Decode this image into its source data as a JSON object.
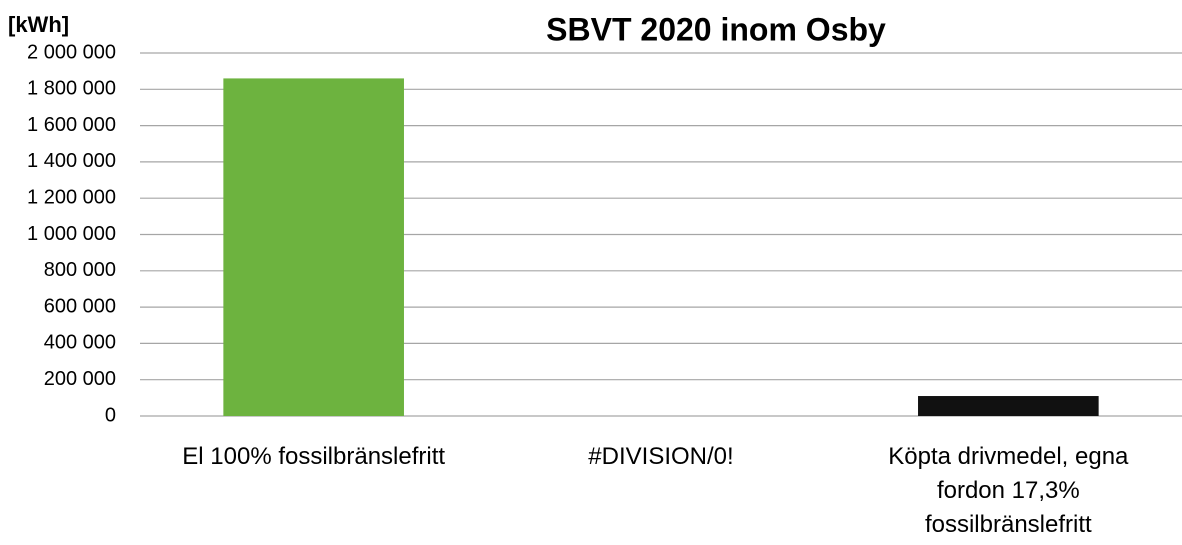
{
  "chart_data": {
    "type": "bar",
    "title": "SBVT 2020 inom Osby",
    "y_label": "[kWh]",
    "categories": [
      "El 100% fossilbränslefritt",
      "#DIVISION/0!",
      "Köpta drivmedel, egna fordon 17,3% fossilbränslefritt"
    ],
    "values": [
      1860000,
      0,
      110000
    ],
    "colors": [
      "#6db33f",
      "#6db33f",
      "#111111"
    ],
    "ylim": [
      0,
      2000000
    ],
    "yticks": [
      0,
      {
        "value": 200000,
        "label": "200 000"
      },
      {
        "value": 400000,
        "label": "400 000"
      },
      {
        "value": 600000,
        "label": "600 000"
      },
      {
        "value": 800000,
        "label": "800 000"
      },
      {
        "value": 1000000,
        "label": "1 000 000"
      },
      {
        "value": 1200000,
        "label": "1 200 000"
      },
      {
        "value": 1400000,
        "label": "1 400 000"
      },
      {
        "value": 1600000,
        "label": "1 600 000"
      },
      {
        "value": 1800000,
        "label": "1 800 000"
      },
      {
        "value": 2000000,
        "label": "2 000 000"
      }
    ],
    "grid": true
  }
}
